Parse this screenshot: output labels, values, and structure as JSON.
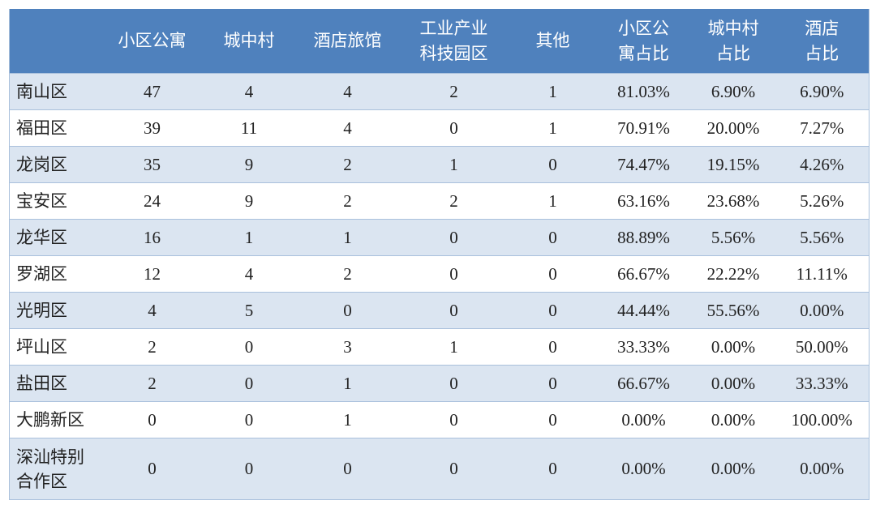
{
  "table": {
    "headers": [
      {
        "line1": "",
        "line2": ""
      },
      {
        "line1": "小区公寓",
        "line2": ""
      },
      {
        "line1": "城中村",
        "line2": ""
      },
      {
        "line1": "酒店旅馆",
        "line2": ""
      },
      {
        "line1": "工业产业",
        "line2": "科技园区"
      },
      {
        "line1": "其他",
        "line2": ""
      },
      {
        "line1": "小区公",
        "line2": "寓占比"
      },
      {
        "line1": "城中村",
        "line2": "占比"
      },
      {
        "line1": "酒店",
        "line2": "占比"
      }
    ],
    "rows": [
      {
        "name1": "南山区",
        "name2": "",
        "cells": [
          "47",
          "4",
          "4",
          "2",
          "1",
          "81.03%",
          "6.90%",
          "6.90%"
        ]
      },
      {
        "name1": "福田区",
        "name2": "",
        "cells": [
          "39",
          "11",
          "4",
          "0",
          "1",
          "70.91%",
          "20.00%",
          "7.27%"
        ]
      },
      {
        "name1": "龙岗区",
        "name2": "",
        "cells": [
          "35",
          "9",
          "2",
          "1",
          "0",
          "74.47%",
          "19.15%",
          "4.26%"
        ]
      },
      {
        "name1": "宝安区",
        "name2": "",
        "cells": [
          "24",
          "9",
          "2",
          "2",
          "1",
          "63.16%",
          "23.68%",
          "5.26%"
        ]
      },
      {
        "name1": "龙华区",
        "name2": "",
        "cells": [
          "16",
          "1",
          "1",
          "0",
          "0",
          "88.89%",
          "5.56%",
          "5.56%"
        ]
      },
      {
        "name1": "罗湖区",
        "name2": "",
        "cells": [
          "12",
          "4",
          "2",
          "0",
          "0",
          "66.67%",
          "22.22%",
          "11.11%"
        ]
      },
      {
        "name1": "光明区",
        "name2": "",
        "cells": [
          "4",
          "5",
          "0",
          "0",
          "0",
          "44.44%",
          "55.56%",
          "0.00%"
        ]
      },
      {
        "name1": "坪山区",
        "name2": "",
        "cells": [
          "2",
          "0",
          "3",
          "1",
          "0",
          "33.33%",
          "0.00%",
          "50.00%"
        ]
      },
      {
        "name1": "盐田区",
        "name2": "",
        "cells": [
          "2",
          "0",
          "1",
          "0",
          "0",
          "66.67%",
          "0.00%",
          "33.33%"
        ]
      },
      {
        "name1": "大鹏新区",
        "name2": "",
        "cells": [
          "0",
          "0",
          "1",
          "0",
          "0",
          "0.00%",
          "0.00%",
          "100.00%"
        ]
      },
      {
        "name1": "深汕特别",
        "name2": "合作区",
        "cells": [
          "0",
          "0",
          "0",
          "0",
          "0",
          "0.00%",
          "0.00%",
          "0.00%"
        ]
      }
    ]
  },
  "colors": {
    "header_bg": "#4f81bd",
    "row_alt_bg": "#dbe5f1",
    "border": "#a9c0dc"
  }
}
